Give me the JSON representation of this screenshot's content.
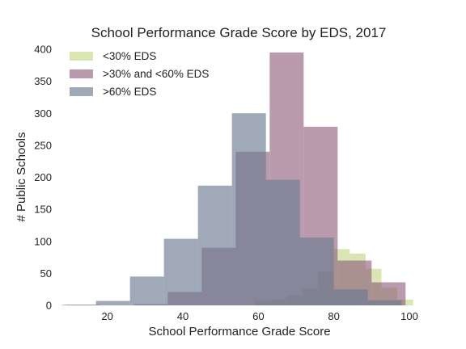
{
  "chart_data": {
    "type": "histogram",
    "title": "School Performance Grade Score by EDS, 2017",
    "xlabel": "School Performance Grade Score",
    "ylabel": "# Public Schools",
    "xlim": [
      7,
      103
    ],
    "ylim": [
      0,
      400
    ],
    "xticks": [
      20,
      40,
      60,
      80,
      100
    ],
    "yticks": [
      0,
      50,
      100,
      150,
      200,
      250,
      300,
      350,
      400
    ],
    "grid": false,
    "legend_position": "top-left",
    "series": [
      {
        "name": "<30% EDS",
        "color": "#c5d88a",
        "opacity": 0.65,
        "bins": [
          {
            "x0": 59.0,
            "x1": 63.2,
            "y": 7
          },
          {
            "x0": 63.2,
            "x1": 67.4,
            "y": 10
          },
          {
            "x0": 67.4,
            "x1": 71.6,
            "y": 16
          },
          {
            "x0": 71.6,
            "x1": 75.8,
            "y": 26
          },
          {
            "x0": 75.8,
            "x1": 80.0,
            "y": 53
          },
          {
            "x0": 80.0,
            "x1": 84.2,
            "y": 88
          },
          {
            "x0": 84.2,
            "x1": 88.4,
            "y": 81
          },
          {
            "x0": 88.4,
            "x1": 92.6,
            "y": 57
          },
          {
            "x0": 92.6,
            "x1": 96.8,
            "y": 28
          },
          {
            "x0": 96.8,
            "x1": 101.0,
            "y": 9
          }
        ]
      },
      {
        "name": ">30% and <60% EDS",
        "color": "#8b5876",
        "opacity": 0.6,
        "bins": [
          {
            "x0": 9.0,
            "x1": 18.0,
            "y": 1
          },
          {
            "x0": 18.0,
            "x1": 27.0,
            "y": 0
          },
          {
            "x0": 27.0,
            "x1": 36.0,
            "y": 2
          },
          {
            "x0": 36.0,
            "x1": 45.0,
            "y": 21
          },
          {
            "x0": 45.0,
            "x1": 54.0,
            "y": 90
          },
          {
            "x0": 54.0,
            "x1": 63.0,
            "y": 240
          },
          {
            "x0": 63.0,
            "x1": 72.0,
            "y": 395
          },
          {
            "x0": 72.0,
            "x1": 81.0,
            "y": 279
          },
          {
            "x0": 81.0,
            "x1": 90.0,
            "y": 70
          },
          {
            "x0": 90.0,
            "x1": 99.0,
            "y": 36
          }
        ]
      },
      {
        "name": ">60% EDS",
        "color": "#6b7b92",
        "opacity": 0.65,
        "bins": [
          {
            "x0": 8.0,
            "x1": 17.0,
            "y": 1
          },
          {
            "x0": 17.0,
            "x1": 26.0,
            "y": 7
          },
          {
            "x0": 26.0,
            "x1": 35.0,
            "y": 45
          },
          {
            "x0": 35.0,
            "x1": 44.0,
            "y": 104
          },
          {
            "x0": 44.0,
            "x1": 53.0,
            "y": 187
          },
          {
            "x0": 53.0,
            "x1": 62.0,
            "y": 300
          },
          {
            "x0": 62.0,
            "x1": 71.0,
            "y": 196
          },
          {
            "x0": 71.0,
            "x1": 80.0,
            "y": 106
          },
          {
            "x0": 80.0,
            "x1": 89.0,
            "y": 25
          },
          {
            "x0": 89.0,
            "x1": 98.0,
            "y": 8
          }
        ]
      }
    ]
  }
}
